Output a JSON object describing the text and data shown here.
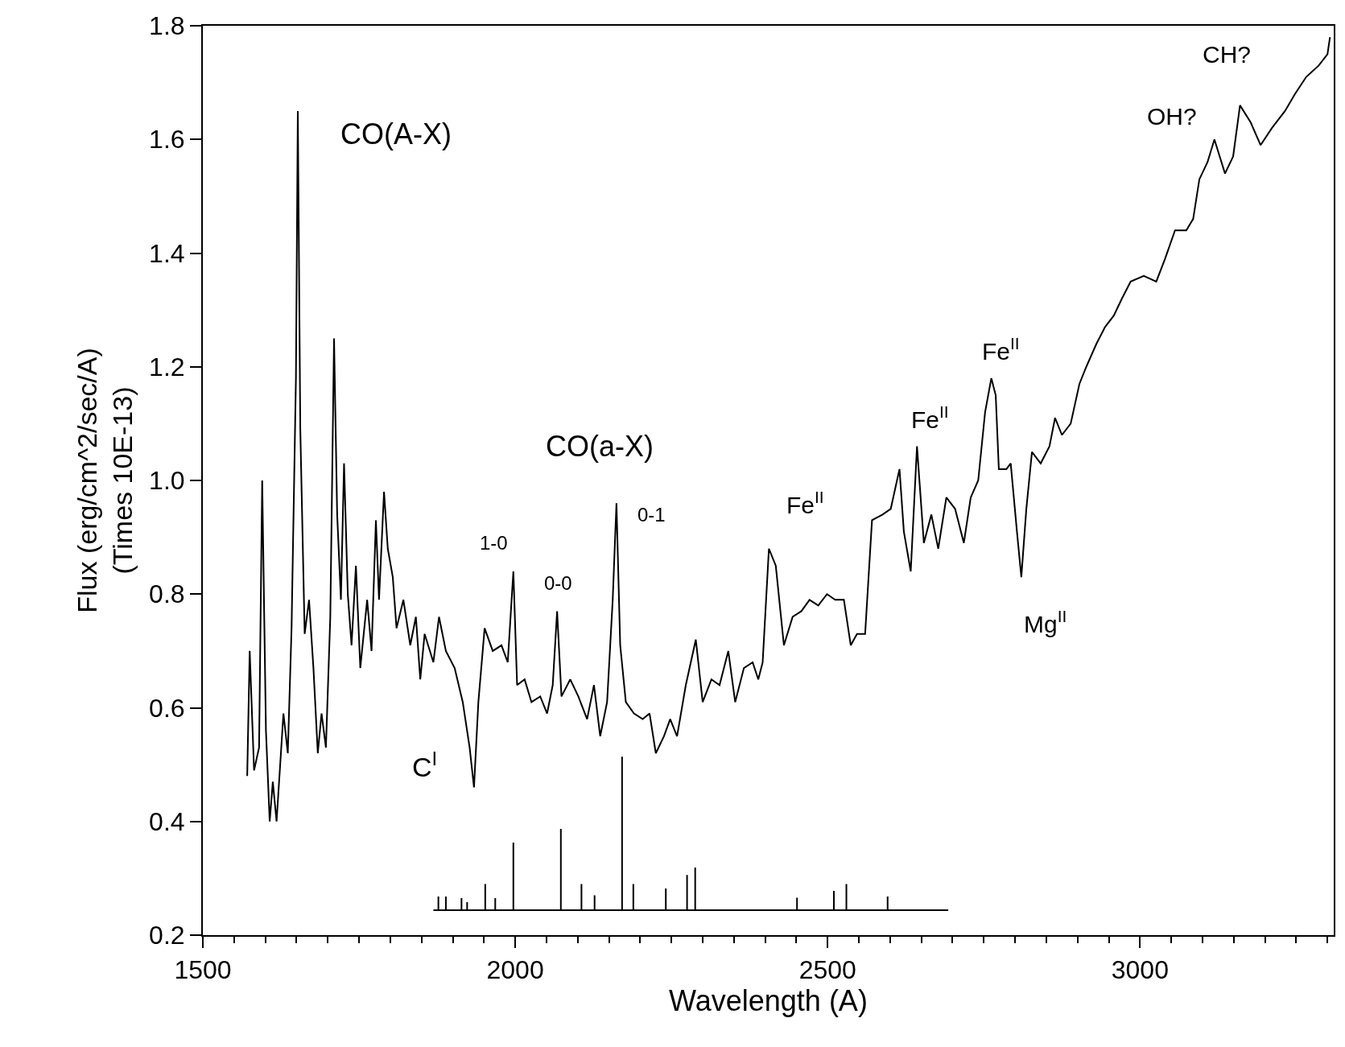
{
  "chart_data": {
    "type": "line",
    "xlabel": "Wavelength (A)",
    "ylabel": "Flux (erg/cm^2/sec/A)\n(Times 10E-13)",
    "xlim": [
      1500,
      3310
    ],
    "ylim": [
      0.2,
      1.8
    ],
    "xticks": [
      1500,
      {
        "value": 1550,
        "label": null
      },
      {
        "value": 1600,
        "label": null
      },
      {
        "value": 1650,
        "label": null
      },
      {
        "value": 1700,
        "label": null
      },
      {
        "value": 1750,
        "label": null
      },
      {
        "value": 1800,
        "label": null
      },
      {
        "value": 1850,
        "label": null
      },
      {
        "value": 1900,
        "label": null
      },
      {
        "value": 1950,
        "label": null
      },
      2000,
      {
        "value": 2050,
        "label": null
      },
      {
        "value": 2100,
        "label": null
      },
      {
        "value": 2150,
        "label": null
      },
      {
        "value": 2200,
        "label": null
      },
      {
        "value": 2250,
        "label": null
      },
      {
        "value": 2300,
        "label": null
      },
      {
        "value": 2350,
        "label": null
      },
      {
        "value": 2400,
        "label": null
      },
      {
        "value": 2450,
        "label": null
      },
      2500,
      {
        "value": 2550,
        "label": null
      },
      {
        "value": 2600,
        "label": null
      },
      {
        "value": 2650,
        "label": null
      },
      {
        "value": 2700,
        "label": null
      },
      {
        "value": 2750,
        "label": null
      },
      {
        "value": 2800,
        "label": null
      },
      {
        "value": 2850,
        "label": null
      },
      {
        "value": 2900,
        "label": null
      },
      {
        "value": 2950,
        "label": null
      },
      3000,
      {
        "value": 3050,
        "label": null
      },
      {
        "value": 3100,
        "label": null
      },
      {
        "value": 3150,
        "label": null
      },
      {
        "value": 3200,
        "label": null
      },
      {
        "value": 3250,
        "label": null
      },
      {
        "value": 3300,
        "label": null
      }
    ],
    "yticks": [
      0.2,
      0.4,
      0.6,
      0.8,
      {
        "value": 1.0,
        "label": "1.0"
      },
      1.2,
      1.4,
      1.6,
      1.8
    ],
    "marker": "none",
    "line_style": "solid",
    "series": [
      {
        "color": "#000000",
        "x": [
          1571,
          1575,
          1582,
          1590,
          1595,
          1601,
          1607,
          1612,
          1618,
          1629,
          1636,
          1642,
          1649,
          1652,
          1656,
          1663,
          1670,
          1677,
          1684,
          1690,
          1697,
          1704,
          1710,
          1715,
          1721,
          1726,
          1732,
          1738,
          1745,
          1752,
          1763,
          1770,
          1777,
          1782,
          1790,
          1796,
          1804,
          1810,
          1821,
          1832,
          1841,
          1848,
          1855,
          1869,
          1878,
          1889,
          1903,
          1916,
          1927,
          1934,
          1941,
          1951,
          1964,
          1978,
          1988,
          1997,
          2003,
          2015,
          2026,
          2040,
          2051,
          2060,
          2067,
          2074,
          2088,
          2101,
          2115,
          2126,
          2136,
          2147,
          2156,
          2162,
          2168,
          2177,
          2190,
          2204,
          2215,
          2225,
          2238,
          2248,
          2259,
          2273,
          2289,
          2300,
          2314,
          2327,
          2341,
          2352,
          2366,
          2380,
          2389,
          2396,
          2406,
          2417,
          2430,
          2444,
          2458,
          2471,
          2485,
          2499,
          2512,
          2526,
          2537,
          2547,
          2560,
          2571,
          2588,
          2601,
          2615,
          2622,
          2633,
          2643,
          2654,
          2666,
          2677,
          2690,
          2704,
          2718,
          2729,
          2741,
          2752,
          2762,
          2769,
          2774,
          2786,
          2793,
          2803,
          2810,
          2818,
          2827,
          2841,
          2855,
          2864,
          2875,
          2889,
          2903,
          2914,
          2930,
          2944,
          2958,
          2971,
          2985,
          3006,
          3026,
          3040,
          3056,
          3074,
          3085,
          3095,
          3108,
          3119,
          3136,
          3149,
          3160,
          3177,
          3193,
          3211,
          3232,
          3248,
          3266,
          3286,
          3300,
          3304
        ],
        "values": [
          0.48,
          0.7,
          0.49,
          0.53,
          1.0,
          0.56,
          0.4,
          0.47,
          0.4,
          0.59,
          0.52,
          0.74,
          1.18,
          1.65,
          1.09,
          0.73,
          0.79,
          0.67,
          0.52,
          0.59,
          0.53,
          0.76,
          1.25,
          0.94,
          0.79,
          1.03,
          0.8,
          0.71,
          0.85,
          0.67,
          0.79,
          0.7,
          0.93,
          0.79,
          0.98,
          0.88,
          0.83,
          0.74,
          0.79,
          0.71,
          0.76,
          0.65,
          0.73,
          0.68,
          0.76,
          0.7,
          0.67,
          0.61,
          0.53,
          0.46,
          0.61,
          0.74,
          0.7,
          0.71,
          0.68,
          0.84,
          0.64,
          0.65,
          0.61,
          0.62,
          0.59,
          0.64,
          0.77,
          0.62,
          0.65,
          0.62,
          0.58,
          0.64,
          0.55,
          0.61,
          0.79,
          0.96,
          0.71,
          0.61,
          0.59,
          0.58,
          0.59,
          0.52,
          0.55,
          0.58,
          0.55,
          0.64,
          0.72,
          0.61,
          0.65,
          0.64,
          0.7,
          0.61,
          0.67,
          0.68,
          0.65,
          0.68,
          0.88,
          0.85,
          0.71,
          0.76,
          0.77,
          0.79,
          0.78,
          0.8,
          0.79,
          0.79,
          0.71,
          0.73,
          0.73,
          0.93,
          0.94,
          0.95,
          1.02,
          0.91,
          0.84,
          1.06,
          0.89,
          0.94,
          0.88,
          0.97,
          0.95,
          0.89,
          0.97,
          1.0,
          1.12,
          1.18,
          1.15,
          1.02,
          1.02,
          1.03,
          0.91,
          0.83,
          0.95,
          1.05,
          1.03,
          1.06,
          1.11,
          1.08,
          1.1,
          1.17,
          1.2,
          1.24,
          1.27,
          1.29,
          1.32,
          1.35,
          1.36,
          1.35,
          1.39,
          1.44,
          1.44,
          1.46,
          1.53,
          1.56,
          1.6,
          1.54,
          1.57,
          1.66,
          1.63,
          1.59,
          1.62,
          1.65,
          1.68,
          1.71,
          1.73,
          1.75,
          1.78
        ]
      },
      {
        "color": "#000000",
        "x": [
          1869,
          1877,
          1877,
          1877,
          1889,
          1889,
          1889,
          1914,
          1914,
          1914,
          1923,
          1923,
          1923,
          1952,
          1952,
          1952,
          1968,
          1968,
          1968,
          1997,
          1997,
          1997,
          2073,
          2073,
          2073,
          2106,
          2106,
          2106,
          2127,
          2127,
          2127,
          2171,
          2171,
          2171,
          2189,
          2189,
          2189,
          2241,
          2241,
          2241,
          2275,
          2275,
          2275,
          2288,
          2288,
          2288,
          2451,
          2451,
          2451,
          2510,
          2510,
          2510,
          2530,
          2530,
          2530,
          2596,
          2596,
          2596,
          2693
        ],
        "values": [
          0.244,
          0.244,
          0.268,
          0.244,
          0.244,
          0.268,
          0.244,
          0.244,
          0.265,
          0.244,
          0.244,
          0.258,
          0.244,
          0.244,
          0.29,
          0.244,
          0.244,
          0.265,
          0.244,
          0.244,
          0.363,
          0.244,
          0.244,
          0.387,
          0.244,
          0.244,
          0.29,
          0.244,
          0.244,
          0.27,
          0.244,
          0.244,
          0.514,
          0.244,
          0.244,
          0.29,
          0.244,
          0.244,
          0.282,
          0.244,
          0.244,
          0.306,
          0.244,
          0.244,
          0.319,
          0.244,
          0.244,
          0.266,
          0.244,
          0.244,
          0.278,
          0.244,
          0.244,
          0.29,
          0.244,
          0.244,
          0.268,
          0.244,
          0.244
        ]
      }
    ],
    "annotations": [
      "CO(A-X)",
      "CO(a-X)",
      "1-0",
      "0-0",
      "0-1",
      "Fe$^{II}$",
      "Fe$^{II}$",
      "Fe$^{II}$",
      "Mg$^{II}$",
      "C$^{I}$",
      "OH?",
      "CH?"
    ]
  }
}
